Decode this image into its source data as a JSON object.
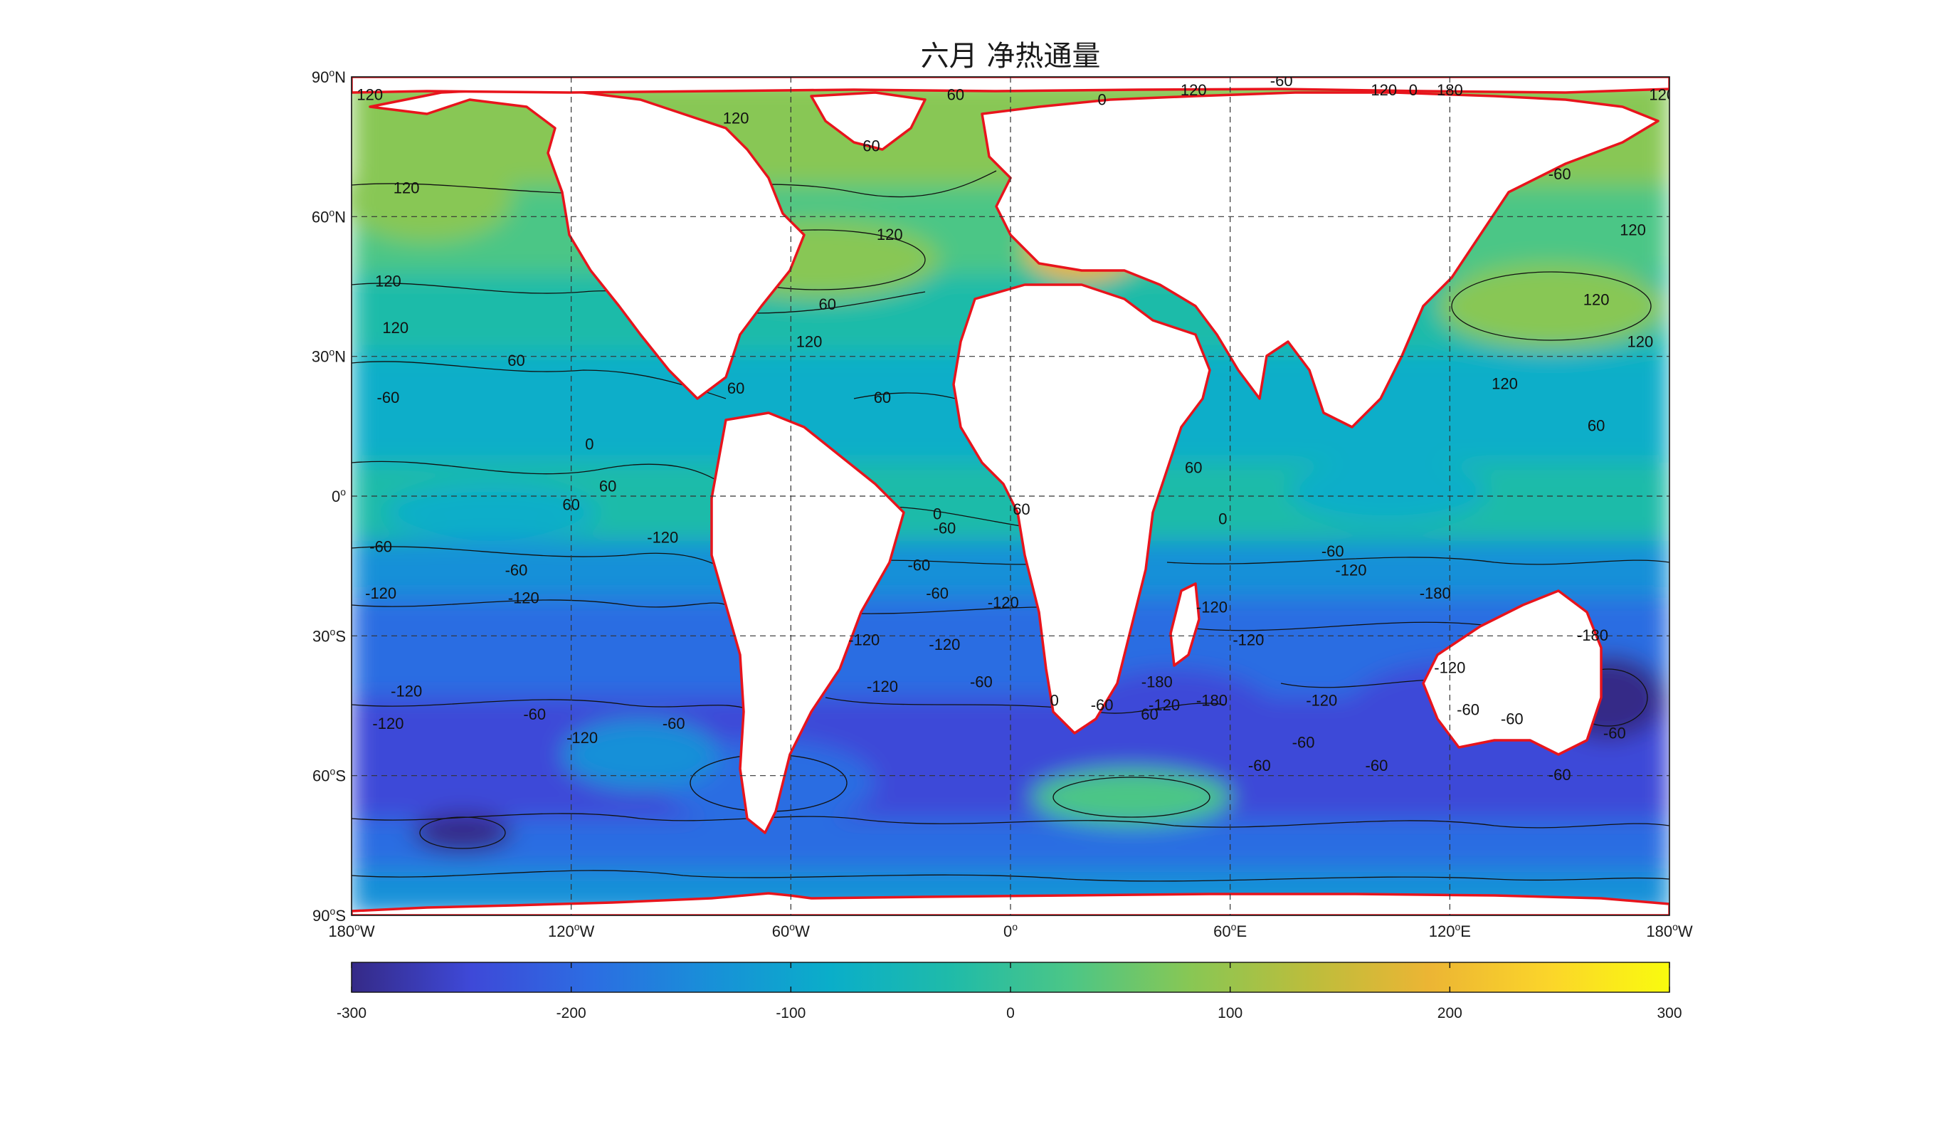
{
  "chart_data": {
    "type": "heatmap",
    "title": "六月 净热通量",
    "projection": "equirectangular",
    "grid": true,
    "lon_ticks": [
      {
        "lon": -180,
        "label": "180",
        "suffix": "W"
      },
      {
        "lon": -120,
        "label": "120",
        "suffix": "W"
      },
      {
        "lon": -60,
        "label": "60",
        "suffix": "W"
      },
      {
        "lon": 0,
        "label": "0",
        "suffix": ""
      },
      {
        "lon": 60,
        "label": "60",
        "suffix": "E"
      },
      {
        "lon": 120,
        "label": "120",
        "suffix": "E"
      },
      {
        "lon": 180,
        "label": "180",
        "suffix": "W"
      }
    ],
    "lat_ticks": [
      {
        "lat": 90,
        "label": "90",
        "suffix": "N"
      },
      {
        "lat": 60,
        "label": "60",
        "suffix": "N"
      },
      {
        "lat": 30,
        "label": "30",
        "suffix": "N"
      },
      {
        "lat": 0,
        "label": "0",
        "suffix": ""
      },
      {
        "lat": -30,
        "label": "30",
        "suffix": "S"
      },
      {
        "lat": -60,
        "label": "60",
        "suffix": "S"
      },
      {
        "lat": -90,
        "label": "90",
        "suffix": "S"
      }
    ],
    "contour_levels": [
      -180,
      -120,
      -60,
      0,
      60,
      120,
      180
    ],
    "contour_labels": [
      {
        "value": "120",
        "lon": -175,
        "lat": 85
      },
      {
        "value": "120",
        "lon": -165,
        "lat": 65
      },
      {
        "value": "120",
        "lon": -170,
        "lat": 45
      },
      {
        "value": "120",
        "lon": -168,
        "lat": 35
      },
      {
        "value": "60",
        "lon": -135,
        "lat": 28
      },
      {
        "value": "-60",
        "lon": -170,
        "lat": 20
      },
      {
        "value": "0",
        "lon": -115,
        "lat": 10
      },
      {
        "value": "-60",
        "lon": -172,
        "lat": -12
      },
      {
        "value": "-60",
        "lon": -135,
        "lat": -17
      },
      {
        "value": "-120",
        "lon": -172,
        "lat": -22
      },
      {
        "value": "-120",
        "lon": -133,
        "lat": -23
      },
      {
        "value": "-120",
        "lon": -165,
        "lat": -43
      },
      {
        "value": "-120",
        "lon": -117,
        "lat": -53
      },
      {
        "value": "-120",
        "lon": -170,
        "lat": -50
      },
      {
        "value": "-60",
        "lon": -130,
        "lat": -48
      },
      {
        "value": "60",
        "lon": -120,
        "lat": -3
      },
      {
        "value": "60",
        "lon": -110,
        "lat": 1
      },
      {
        "value": "60",
        "lon": -75,
        "lat": 22
      },
      {
        "value": "120",
        "lon": -55,
        "lat": 32
      },
      {
        "value": "60",
        "lon": -35,
        "lat": 20
      },
      {
        "value": "120",
        "lon": -33,
        "lat": 55
      },
      {
        "value": "60",
        "lon": -50,
        "lat": 40
      },
      {
        "value": "0",
        "lon": -20,
        "lat": -5
      },
      {
        "value": "-60",
        "lon": -18,
        "lat": -8
      },
      {
        "value": "-60",
        "lon": -25,
        "lat": -16
      },
      {
        "value": "-60",
        "lon": -20,
        "lat": -22
      },
      {
        "value": "-120",
        "lon": -2,
        "lat": -24
      },
      {
        "value": "-120",
        "lon": -18,
        "lat": -33
      },
      {
        "value": "-120",
        "lon": -40,
        "lat": -32
      },
      {
        "value": "-120",
        "lon": -35,
        "lat": -42
      },
      {
        "value": "-60",
        "lon": -8,
        "lat": -41
      },
      {
        "value": "60",
        "lon": 3,
        "lat": -4
      },
      {
        "value": "0",
        "lon": 12,
        "lat": -45
      },
      {
        "value": "-60",
        "lon": 25,
        "lat": -46
      },
      {
        "value": "60",
        "lon": 38,
        "lat": -48
      },
      {
        "value": "-120",
        "lon": 42,
        "lat": -46
      },
      {
        "value": "-180",
        "lon": 40,
        "lat": -41
      },
      {
        "value": "-180",
        "lon": 55,
        "lat": -45
      },
      {
        "value": "-120",
        "lon": 55,
        "lat": -25
      },
      {
        "value": "-120",
        "lon": 65,
        "lat": -32
      },
      {
        "value": "-120",
        "lon": 85,
        "lat": -45
      },
      {
        "value": "-60",
        "lon": 80,
        "lat": -54
      },
      {
        "value": "-60",
        "lon": 68,
        "lat": -59
      },
      {
        "value": "-60",
        "lon": 100,
        "lat": -59
      },
      {
        "value": "-60",
        "lon": 150,
        "lat": -61
      },
      {
        "value": "-60",
        "lon": 125,
        "lat": -47
      },
      {
        "value": "-60",
        "lon": 137,
        "lat": -49
      },
      {
        "value": "-120",
        "lon": 120,
        "lat": -38
      },
      {
        "value": "-120",
        "lon": 93,
        "lat": -17
      },
      {
        "value": "-180",
        "lon": 116,
        "lat": -22
      },
      {
        "value": "-60",
        "lon": 88,
        "lat": -13
      },
      {
        "value": "-180",
        "lon": 159,
        "lat": -31
      },
      {
        "value": "-60",
        "lon": 165,
        "lat": -52
      },
      {
        "value": "0",
        "lon": 58,
        "lat": -6
      },
      {
        "value": "60",
        "lon": 50,
        "lat": 5
      },
      {
        "value": "60",
        "lon": 160,
        "lat": 14
      },
      {
        "value": "120",
        "lon": 135,
        "lat": 23
      },
      {
        "value": "120",
        "lon": 172,
        "lat": 32
      },
      {
        "value": "120",
        "lon": 160,
        "lat": 41
      },
      {
        "value": "120",
        "lon": 170,
        "lat": 56
      },
      {
        "value": "120",
        "lon": 178,
        "lat": 85
      },
      {
        "value": "180",
        "lon": 120,
        "lat": 86
      },
      {
        "value": "0",
        "lon": 110,
        "lat": 86
      },
      {
        "value": "0",
        "lon": 25,
        "lat": 84
      },
      {
        "value": "120",
        "lon": 50,
        "lat": 86
      },
      {
        "value": "120",
        "lon": 102,
        "lat": 86
      },
      {
        "value": "-60",
        "lon": 74,
        "lat": 88
      },
      {
        "value": "60",
        "lon": -38,
        "lat": 74
      },
      {
        "value": "60",
        "lon": -15,
        "lat": 85
      },
      {
        "value": "120",
        "lon": -75,
        "lat": 80
      },
      {
        "value": "-60",
        "lon": 150,
        "lat": 68
      },
      {
        "value": "-60",
        "lon": -92,
        "lat": -50
      },
      {
        "value": "-120",
        "lon": -95,
        "lat": -10
      }
    ],
    "colorbar": {
      "min": -300,
      "max": 300,
      "ticks": [
        "-300",
        "-200",
        "-100",
        "0",
        "100",
        "200",
        "300"
      ],
      "colormap": "parula",
      "colors": [
        "#352a87",
        "#3e49d8",
        "#2c6de2",
        "#1890d8",
        "#0aaec9",
        "#1fbba9",
        "#4cc686",
        "#88c754",
        "#bcbd3c",
        "#ecb534",
        "#fbd52a",
        "#f9fb0e"
      ]
    },
    "coastline_color": "#e8141c",
    "land_color": "#ffffff"
  }
}
